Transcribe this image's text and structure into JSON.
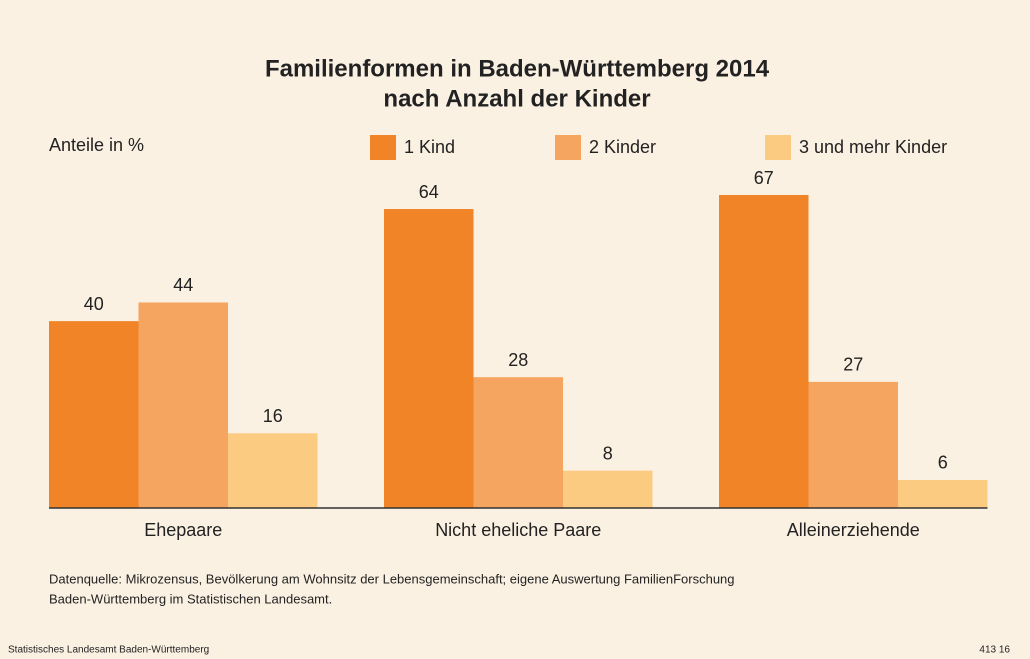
{
  "chart_data": {
    "type": "bar",
    "title": [
      "Familienformen in Baden-Württemberg 2014",
      "nach Anzahl der Kinder"
    ],
    "y_label": "Anteile in %",
    "categories": [
      "Ehepaare",
      "Nicht eheliche Paare",
      "Alleinerziehende"
    ],
    "series": [
      {
        "name": "1 Kind",
        "color": "#f08426",
        "values": [
          40,
          64,
          67
        ]
      },
      {
        "name": "2 Kinder",
        "color": "#f5a55f",
        "values": [
          44,
          28,
          27
        ]
      },
      {
        "name": "3 und mehr Kinder",
        "color": "#fccb82",
        "values": [
          16,
          8,
          6
        ]
      }
    ],
    "ylim": [
      0,
      70
    ],
    "source": [
      "Datenquelle: Mikrozensus, Bevölkerung am Wohnsitz der Lebensgemeinschaft; eigene Auswertung FamilienForschung",
      "Baden-Württemberg im Statistischen Landesamt."
    ],
    "footer_left": "Statistisches Landesamt Baden-Württemberg",
    "footer_right": "413 16"
  }
}
